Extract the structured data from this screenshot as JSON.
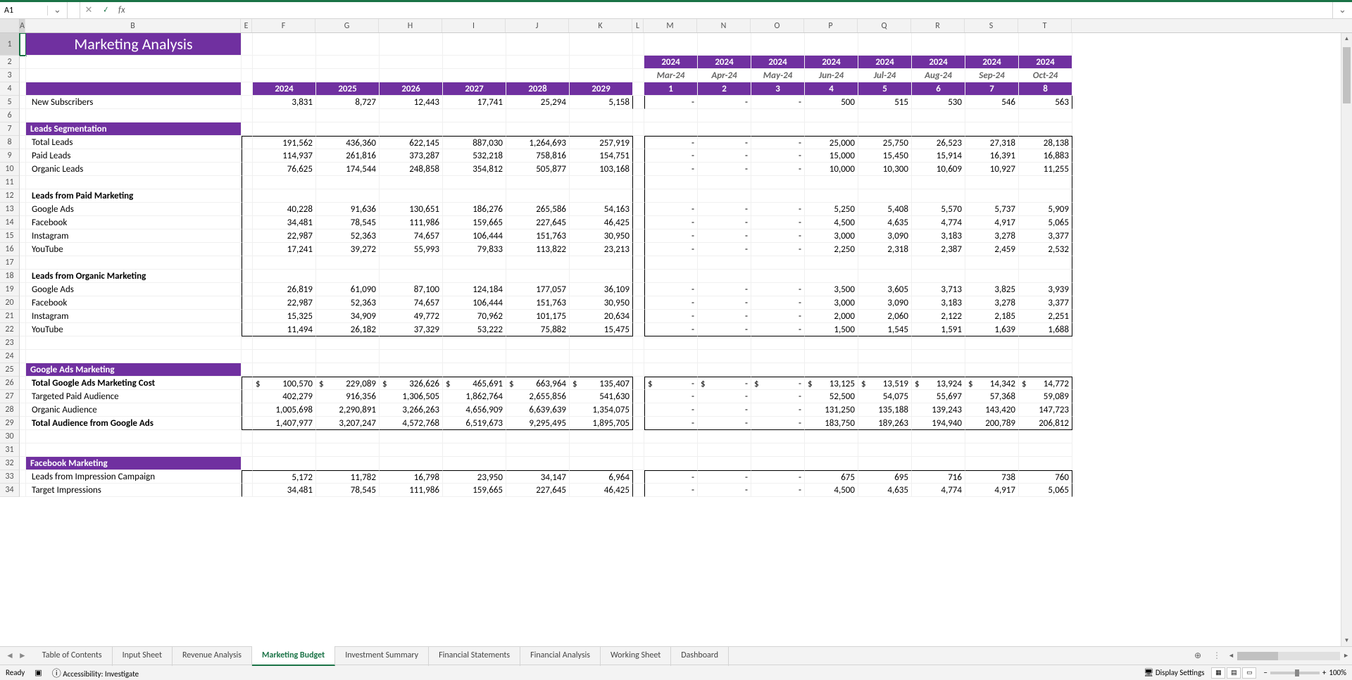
{
  "colors": {
    "accent": "#7030a0",
    "excel_green": "#1a7346",
    "header_bg": "#f3f3f3"
  },
  "name_box": "A1",
  "title": "Marketing Analysis",
  "year_headers": [
    "2024",
    "2025",
    "2026",
    "2027",
    "2028",
    "2029"
  ],
  "month_year_row": [
    "2024",
    "2024",
    "2024",
    "2024",
    "2024",
    "2024",
    "2024",
    "2024"
  ],
  "month_labels": [
    "Mar-24",
    "Apr-24",
    "May-24",
    "Jun-24",
    "Jul-24",
    "Aug-24",
    "Sep-24",
    "Oct-24"
  ],
  "month_nums": [
    "1",
    "2",
    "3",
    "4",
    "5",
    "6",
    "7",
    "8"
  ],
  "rows": {
    "new_subscribers": {
      "label": "New Subscribers",
      "yr": [
        "3,831",
        "8,727",
        "12,443",
        "17,741",
        "25,294",
        "5,158"
      ],
      "mo": [
        "-",
        "-",
        "-",
        "500",
        "515",
        "530",
        "546",
        "563"
      ]
    },
    "section_leads_seg": "Leads Segmentation",
    "total_leads": {
      "label": "Total Leads",
      "yr": [
        "191,562",
        "436,360",
        "622,145",
        "887,030",
        "1,264,693",
        "257,919"
      ],
      "mo": [
        "-",
        "-",
        "-",
        "25,000",
        "25,750",
        "26,523",
        "27,318",
        "28,138"
      ]
    },
    "paid_leads": {
      "label": "Paid Leads",
      "yr": [
        "114,937",
        "261,816",
        "373,287",
        "532,218",
        "758,816",
        "154,751"
      ],
      "mo": [
        "-",
        "-",
        "-",
        "15,000",
        "15,450",
        "15,914",
        "16,391",
        "16,883"
      ]
    },
    "organic_leads": {
      "label": "Organic Leads",
      "yr": [
        "76,625",
        "174,544",
        "248,858",
        "354,812",
        "505,877",
        "103,168"
      ],
      "mo": [
        "-",
        "-",
        "-",
        "10,000",
        "10,300",
        "10,609",
        "10,927",
        "11,255"
      ]
    },
    "sub_paid": "Leads from Paid Marketing",
    "p_google": {
      "label": "Google Ads",
      "yr": [
        "40,228",
        "91,636",
        "130,651",
        "186,276",
        "265,586",
        "54,163"
      ],
      "mo": [
        "-",
        "-",
        "-",
        "5,250",
        "5,408",
        "5,570",
        "5,737",
        "5,909"
      ]
    },
    "p_fb": {
      "label": "Facebook",
      "yr": [
        "34,481",
        "78,545",
        "111,986",
        "159,665",
        "227,645",
        "46,425"
      ],
      "mo": [
        "-",
        "-",
        "-",
        "4,500",
        "4,635",
        "4,774",
        "4,917",
        "5,065"
      ]
    },
    "p_ig": {
      "label": "Instagram",
      "yr": [
        "22,987",
        "52,363",
        "74,657",
        "106,444",
        "151,763",
        "30,950"
      ],
      "mo": [
        "-",
        "-",
        "-",
        "3,000",
        "3,090",
        "3,183",
        "3,278",
        "3,377"
      ]
    },
    "p_yt": {
      "label": "YouTube",
      "yr": [
        "17,241",
        "39,272",
        "55,993",
        "79,833",
        "113,822",
        "23,213"
      ],
      "mo": [
        "-",
        "-",
        "-",
        "2,250",
        "2,318",
        "2,387",
        "2,459",
        "2,532"
      ]
    },
    "sub_org": "Leads from Organic Marketing",
    "o_google": {
      "label": "Google Ads",
      "yr": [
        "26,819",
        "61,090",
        "87,100",
        "124,184",
        "177,057",
        "36,109"
      ],
      "mo": [
        "-",
        "-",
        "-",
        "3,500",
        "3,605",
        "3,713",
        "3,825",
        "3,939"
      ]
    },
    "o_fb": {
      "label": "Facebook",
      "yr": [
        "22,987",
        "52,363",
        "74,657",
        "106,444",
        "151,763",
        "30,950"
      ],
      "mo": [
        "-",
        "-",
        "-",
        "3,000",
        "3,090",
        "3,183",
        "3,278",
        "3,377"
      ]
    },
    "o_ig": {
      "label": "Instagram",
      "yr": [
        "15,325",
        "34,909",
        "49,772",
        "70,962",
        "101,175",
        "20,634"
      ],
      "mo": [
        "-",
        "-",
        "-",
        "2,000",
        "2,060",
        "2,122",
        "2,185",
        "2,251"
      ]
    },
    "o_yt": {
      "label": "YouTube",
      "yr": [
        "11,494",
        "26,182",
        "37,329",
        "53,222",
        "75,882",
        "15,475"
      ],
      "mo": [
        "-",
        "-",
        "-",
        "1,500",
        "1,545",
        "1,591",
        "1,639",
        "1,688"
      ]
    },
    "section_google": "Google Ads Marketing",
    "g_total_cost": {
      "label": "Total Google Ads Marketing Cost",
      "yr": [
        "100,570",
        "229,089",
        "326,626",
        "465,691",
        "663,964",
        "135,407"
      ],
      "mo": [
        "-",
        "-",
        "-",
        "13,125",
        "13,519",
        "13,924",
        "14,342",
        "14,772"
      ]
    },
    "g_paid_aud": {
      "label": "Targeted Paid Audience",
      "yr": [
        "402,279",
        "916,356",
        "1,306,505",
        "1,862,764",
        "2,655,856",
        "541,630"
      ],
      "mo": [
        "-",
        "-",
        "-",
        "52,500",
        "54,075",
        "55,697",
        "57,368",
        "59,089"
      ]
    },
    "g_org_aud": {
      "label": "Organic Audience",
      "yr": [
        "1,005,698",
        "2,290,891",
        "3,266,263",
        "4,656,909",
        "6,639,639",
        "1,354,075"
      ],
      "mo": [
        "-",
        "-",
        "-",
        "131,250",
        "135,188",
        "139,243",
        "143,420",
        "147,723"
      ]
    },
    "g_total_aud": {
      "label": "Total Audience from Google Ads",
      "yr": [
        "1,407,977",
        "3,207,247",
        "4,572,768",
        "6,519,673",
        "9,295,495",
        "1,895,705"
      ],
      "mo": [
        "-",
        "-",
        "-",
        "183,750",
        "189,263",
        "194,940",
        "200,789",
        "206,812"
      ]
    },
    "section_fb": "Facebook Marketing",
    "fb_imp": {
      "label": "Leads from Impression Campaign",
      "yr": [
        "5,172",
        "11,782",
        "16,798",
        "23,950",
        "34,147",
        "6,964"
      ],
      "mo": [
        "-",
        "-",
        "-",
        "675",
        "695",
        "716",
        "738",
        "760"
      ]
    },
    "fb_tgt": {
      "label": "Target Impressions",
      "yr": [
        "34,481",
        "78,545",
        "111,986",
        "159,665",
        "227,645",
        "46,425"
      ],
      "mo": [
        "-",
        "-",
        "-",
        "4,500",
        "4,635",
        "4,774",
        "4,917",
        "5,065"
      ]
    }
  },
  "col_labels": {
    "A": "A",
    "B": "B",
    "E": "E",
    "F": "F",
    "G": "G",
    "H": "H",
    "I": "I",
    "J": "J",
    "K": "K",
    "L": "L",
    "M": "M",
    "N": "N",
    "O": "O",
    "P": "P",
    "Q": "Q",
    "R": "R",
    "S": "S",
    "T": "T"
  },
  "row_nums": [
    "1",
    "2",
    "3",
    "4",
    "5",
    "6",
    "7",
    "8",
    "9",
    "10",
    "11",
    "12",
    "13",
    "14",
    "15",
    "16",
    "17",
    "18",
    "19",
    "20",
    "21",
    "22",
    "23",
    "24",
    "25",
    "26",
    "27",
    "28",
    "29",
    "30",
    "31",
    "32",
    "33",
    "34"
  ],
  "tabs": [
    "Table of Contents",
    "Input Sheet",
    "Revenue Analysis",
    "Marketing Budget",
    "Investment Summary",
    "Financial Statements",
    "Financial Analysis",
    "Working Sheet",
    "Dashboard"
  ],
  "active_tab": "Marketing Budget",
  "status": {
    "ready": "Ready",
    "accessibility": "Accessibility: Investigate",
    "display": "Display Settings",
    "zoom": "100%"
  }
}
